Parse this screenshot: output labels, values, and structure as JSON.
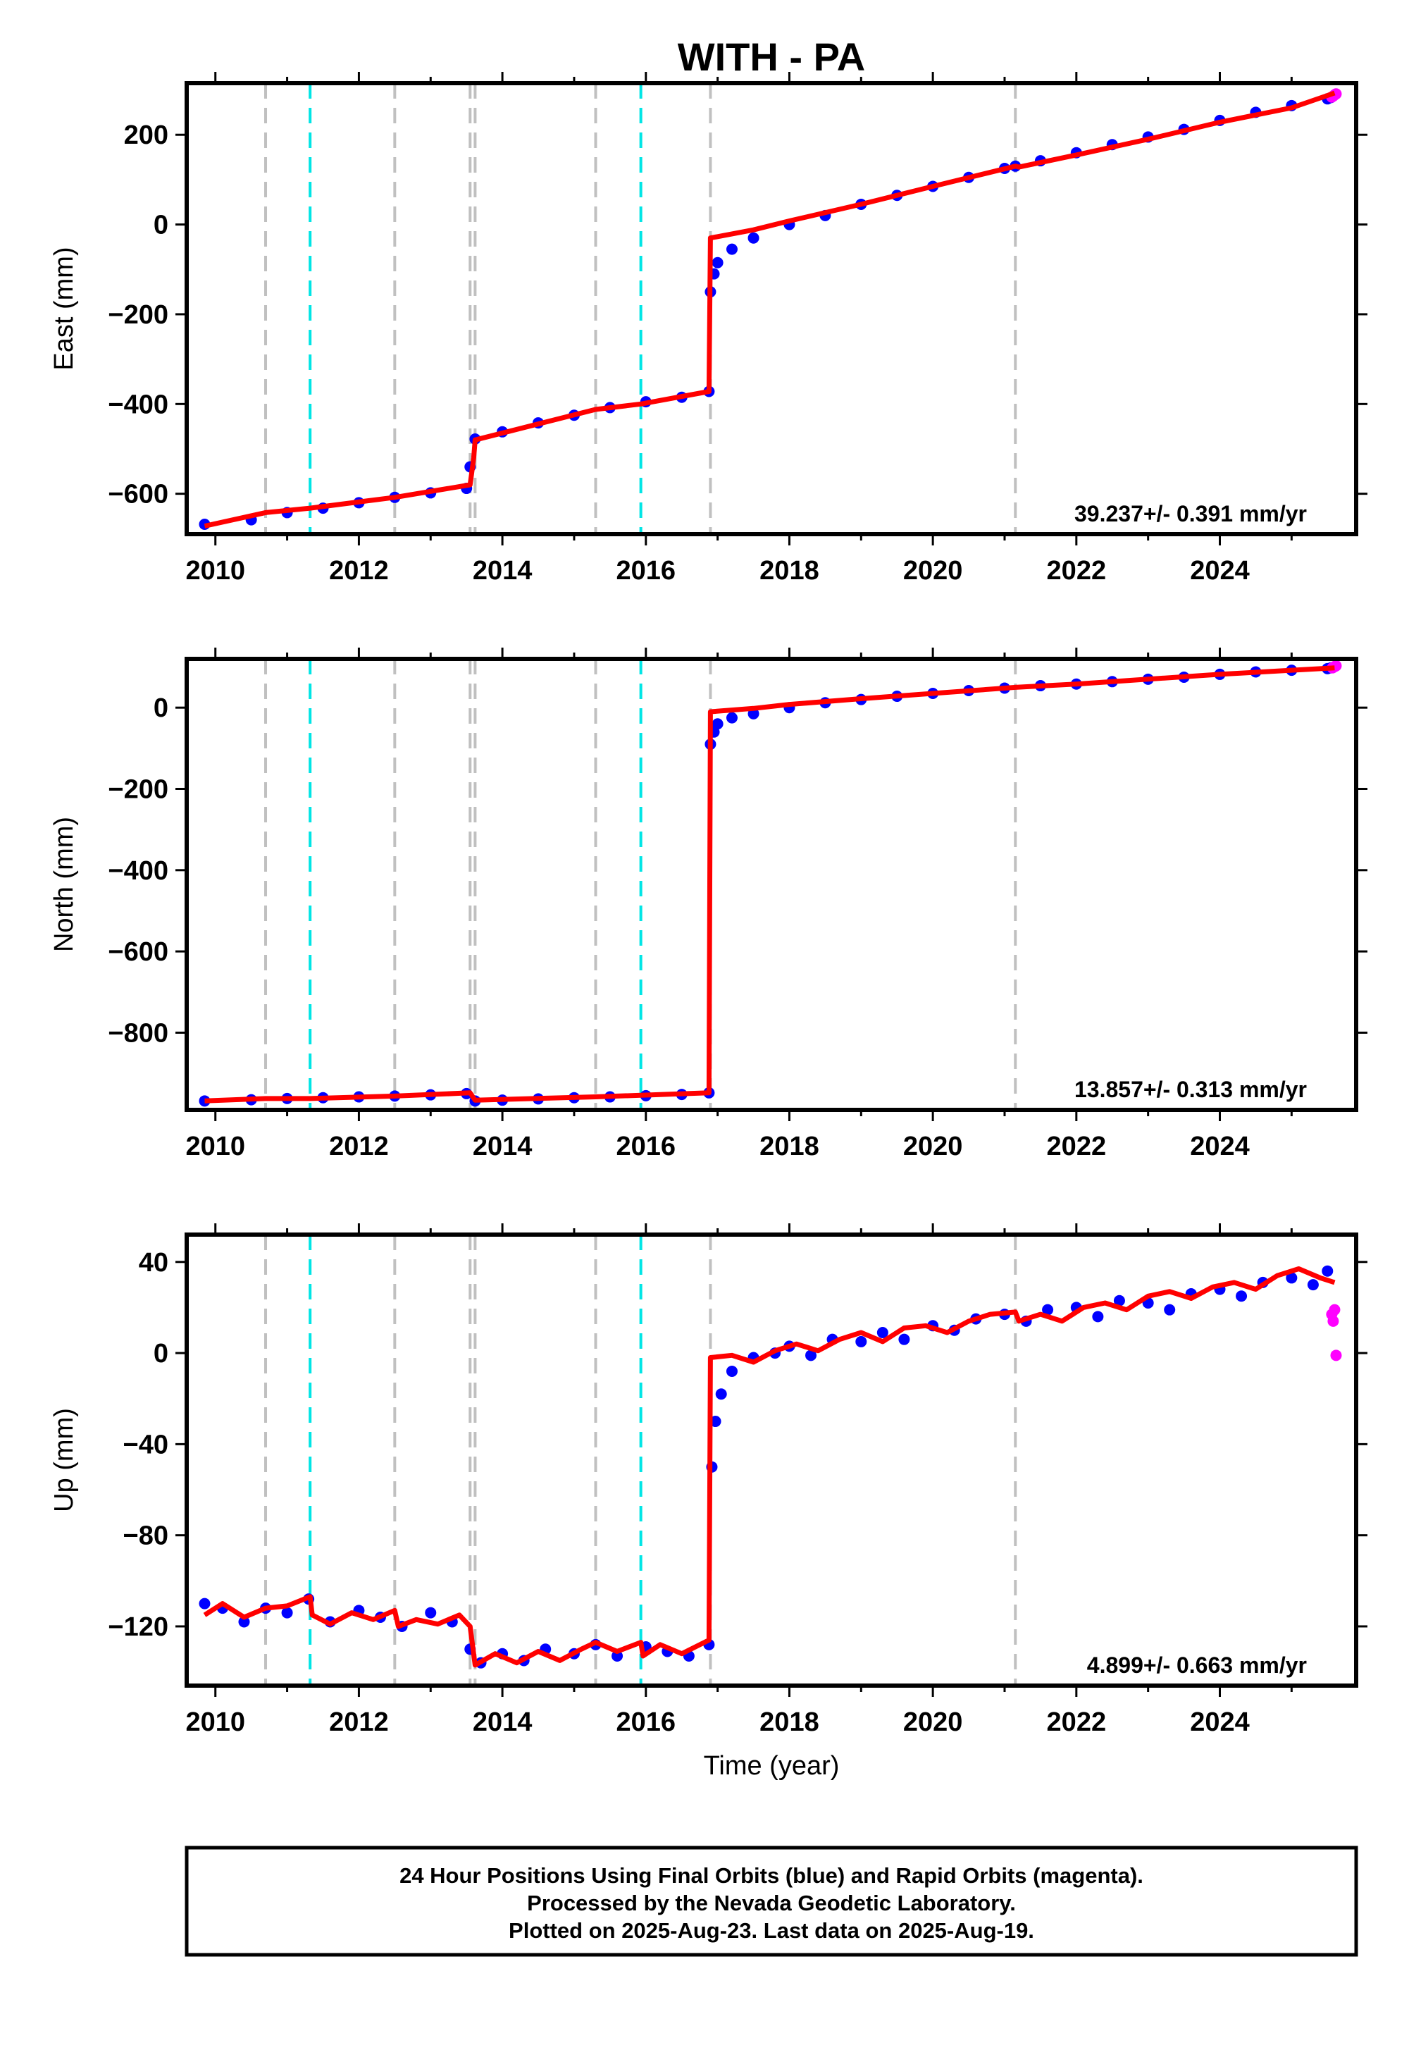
{
  "title": "WITH - PA",
  "xlabel": "Time (year)",
  "footer": {
    "line1": "24 Hour Positions Using Final Orbits (blue) and Rapid Orbits (magenta).",
    "line2": "Processed by the Nevada Geodetic Laboratory.",
    "line3": "Plotted on 2025-Aug-23. Last data on 2025-Aug-19."
  },
  "colors": {
    "final_orbits": "#0000ff",
    "rapid_orbits": "#ff00ff",
    "model": "#ff0000",
    "equipment_change": "#c0c0c0",
    "earthquake": "#00e5e5"
  },
  "chart_data": [
    {
      "type": "scatter",
      "ylabel": "East (mm)",
      "xlim": [
        2009.6,
        2025.9
      ],
      "ylim": [
        -690,
        315
      ],
      "xticks": [
        2010,
        2012,
        2014,
        2016,
        2018,
        2020,
        2022,
        2024
      ],
      "yticks": [
        -600,
        -400,
        -200,
        0,
        200
      ],
      "rate_label": "39.237+/- 0.391 mm/yr",
      "gray_lines": [
        2010.7,
        2012.5,
        2013.55,
        2013.62,
        2015.3,
        2016.9,
        2021.15
      ],
      "cyan_lines": [
        2011.32,
        2015.93
      ],
      "series": [
        {
          "name": "Final Orbits",
          "data_name": "final-orbit-series",
          "x": [
            2009.85,
            2010.5,
            2011.0,
            2011.5,
            2012.0,
            2012.5,
            2013.0,
            2013.5,
            2013.55,
            2013.62,
            2014.0,
            2014.5,
            2015.0,
            2015.5,
            2016.0,
            2016.5,
            2016.88,
            2016.9,
            2016.95,
            2017.0,
            2017.2,
            2017.5,
            2018.0,
            2018.5,
            2019.0,
            2019.5,
            2020.0,
            2020.5,
            2021.0,
            2021.15,
            2021.5,
            2022.0,
            2022.5,
            2023.0,
            2023.5,
            2024.0,
            2024.5,
            2025.0,
            2025.5,
            2025.55
          ],
          "y": [
            -668,
            -658,
            -642,
            -632,
            -620,
            -608,
            -598,
            -588,
            -540,
            -478,
            -462,
            -442,
            -425,
            -408,
            -395,
            -385,
            -372,
            -150,
            -110,
            -85,
            -55,
            -30,
            0,
            20,
            45,
            65,
            85,
            105,
            125,
            130,
            142,
            160,
            178,
            195,
            212,
            232,
            250,
            265,
            280,
            283
          ]
        },
        {
          "name": "Rapid Orbits",
          "data_name": "rapid-orbit-series",
          "x": [
            2025.56,
            2025.58,
            2025.6,
            2025.62
          ],
          "y": [
            284,
            286,
            289,
            291
          ]
        },
        {
          "name": "Model",
          "data_name": "model-series",
          "x": [
            2009.85,
            2010.7,
            2011.32,
            2012.5,
            2013.55,
            2013.6,
            2013.62,
            2015.3,
            2015.93,
            2016.88,
            2016.9,
            2017.5,
            2018.0,
            2019.0,
            2020.0,
            2021.15,
            2021.2,
            2022.0,
            2023.0,
            2024.0,
            2025.0,
            2025.6
          ],
          "y": [
            -672,
            -642,
            -632,
            -608,
            -580,
            -520,
            -480,
            -412,
            -400,
            -372,
            -30,
            -12,
            8,
            45,
            85,
            130,
            128,
            155,
            190,
            228,
            260,
            293
          ]
        }
      ]
    },
    {
      "type": "scatter",
      "ylabel": "North (mm)",
      "xlim": [
        2009.6,
        2025.9
      ],
      "ylim": [
        -990,
        120
      ],
      "xticks": [
        2010,
        2012,
        2014,
        2016,
        2018,
        2020,
        2022,
        2024
      ],
      "yticks": [
        -800,
        -600,
        -400,
        -200,
        0
      ],
      "rate_label": "13.857+/- 0.313 mm/yr",
      "gray_lines": [
        2010.7,
        2012.5,
        2013.55,
        2013.62,
        2015.3,
        2016.9,
        2021.15
      ],
      "cyan_lines": [
        2011.32,
        2015.93
      ],
      "series": [
        {
          "name": "Final Orbits",
          "data_name": "final-orbit-series",
          "x": [
            2009.85,
            2010.5,
            2011.0,
            2011.5,
            2012.0,
            2012.5,
            2013.0,
            2013.5,
            2013.62,
            2014.0,
            2014.5,
            2015.0,
            2015.5,
            2016.0,
            2016.5,
            2016.88,
            2016.9,
            2016.95,
            2017.0,
            2017.2,
            2017.5,
            2018.0,
            2018.5,
            2019.0,
            2019.5,
            2020.0,
            2020.5,
            2021.0,
            2021.5,
            2022.0,
            2022.5,
            2023.0,
            2023.5,
            2024.0,
            2024.5,
            2025.0,
            2025.5,
            2025.55
          ],
          "y": [
            -968,
            -965,
            -962,
            -960,
            -958,
            -956,
            -953,
            -950,
            -968,
            -966,
            -963,
            -960,
            -958,
            -955,
            -952,
            -948,
            -90,
            -60,
            -40,
            -25,
            -15,
            0,
            12,
            20,
            28,
            35,
            42,
            48,
            54,
            58,
            64,
            70,
            75,
            82,
            88,
            92,
            96,
            98
          ]
        },
        {
          "name": "Rapid Orbits",
          "data_name": "rapid-orbit-series",
          "x": [
            2025.57,
            2025.6,
            2025.62
          ],
          "y": [
            98,
            101,
            103
          ]
        },
        {
          "name": "Model",
          "data_name": "model-series",
          "x": [
            2009.85,
            2010.7,
            2011.32,
            2012.5,
            2013.55,
            2013.62,
            2015.3,
            2016.88,
            2016.9,
            2017.5,
            2018.0,
            2019.0,
            2020.0,
            2021.15,
            2022.0,
            2023.0,
            2024.0,
            2025.0,
            2025.6
          ],
          "y": [
            -968,
            -962,
            -962,
            -956,
            -948,
            -966,
            -958,
            -948,
            -10,
            -2,
            8,
            22,
            35,
            50,
            58,
            70,
            82,
            92,
            98
          ]
        }
      ]
    },
    {
      "type": "scatter",
      "ylabel": "Up (mm)",
      "xlim": [
        2009.6,
        2025.9
      ],
      "ylim": [
        -146,
        52
      ],
      "xticks": [
        2010,
        2012,
        2014,
        2016,
        2018,
        2020,
        2022,
        2024
      ],
      "yticks": [
        -120,
        -80,
        -40,
        0,
        40
      ],
      "rate_label": "4.899+/- 0.663 mm/yr",
      "gray_lines": [
        2010.7,
        2012.5,
        2013.55,
        2013.62,
        2015.3,
        2016.9,
        2021.15
      ],
      "cyan_lines": [
        2011.32,
        2015.93
      ],
      "series": [
        {
          "name": "Final Orbits",
          "data_name": "final-orbit-series",
          "x": [
            2009.85,
            2010.1,
            2010.4,
            2010.7,
            2011.0,
            2011.3,
            2011.6,
            2012.0,
            2012.3,
            2012.6,
            2013.0,
            2013.3,
            2013.55,
            2013.7,
            2014.0,
            2014.3,
            2014.6,
            2015.0,
            2015.3,
            2015.6,
            2016.0,
            2016.3,
            2016.6,
            2016.88,
            2016.92,
            2016.97,
            2017.05,
            2017.2,
            2017.5,
            2017.8,
            2018.0,
            2018.3,
            2018.6,
            2019.0,
            2019.3,
            2019.6,
            2020.0,
            2020.3,
            2020.6,
            2021.0,
            2021.3,
            2021.6,
            2022.0,
            2022.3,
            2022.6,
            2023.0,
            2023.3,
            2023.6,
            2024.0,
            2024.3,
            2024.6,
            2025.0,
            2025.3,
            2025.5
          ],
          "y": [
            -110,
            -112,
            -118,
            -112,
            -114,
            -108,
            -118,
            -113,
            -116,
            -120,
            -114,
            -118,
            -130,
            -136,
            -132,
            -135,
            -130,
            -132,
            -128,
            -133,
            -129,
            -131,
            -133,
            -128,
            -50,
            -30,
            -18,
            -8,
            -2,
            0,
            3,
            -1,
            6,
            5,
            9,
            6,
            12,
            10,
            15,
            17,
            14,
            19,
            20,
            16,
            23,
            22,
            19,
            26,
            28,
            25,
            31,
            33,
            30,
            36
          ]
        },
        {
          "name": "Rapid Orbits",
          "data_name": "rapid-orbit-series",
          "x": [
            2025.56,
            2025.58,
            2025.6,
            2025.62
          ],
          "y": [
            17,
            14,
            19,
            -1
          ]
        },
        {
          "name": "Model",
          "data_name": "model-series",
          "x": [
            2009.85,
            2010.1,
            2010.4,
            2010.7,
            2011.0,
            2011.32,
            2011.35,
            2011.6,
            2011.9,
            2012.2,
            2012.5,
            2012.55,
            2012.8,
            2013.1,
            2013.4,
            2013.55,
            2013.62,
            2013.9,
            2014.2,
            2014.5,
            2014.8,
            2015.1,
            2015.3,
            2015.6,
            2015.93,
            2015.96,
            2016.2,
            2016.5,
            2016.88,
            2016.9,
            2017.2,
            2017.5,
            2017.8,
            2018.1,
            2018.4,
            2018.7,
            2019.0,
            2019.3,
            2019.6,
            2019.9,
            2020.2,
            2020.5,
            2020.8,
            2021.15,
            2021.2,
            2021.5,
            2021.8,
            2022.1,
            2022.4,
            2022.7,
            2023.0,
            2023.3,
            2023.6,
            2023.9,
            2024.2,
            2024.5,
            2024.8,
            2025.1,
            2025.4,
            2025.6
          ],
          "y": [
            -115,
            -110,
            -116,
            -112,
            -111,
            -107,
            -115,
            -119,
            -114,
            -117,
            -113,
            -120,
            -117,
            -119,
            -115,
            -120,
            -137,
            -132,
            -136,
            -131,
            -135,
            -130,
            -127,
            -131,
            -127,
            -133,
            -128,
            -132,
            -126,
            -2,
            -1,
            -4,
            1,
            4,
            1,
            6,
            9,
            5,
            11,
            12,
            9,
            14,
            17,
            18,
            14,
            17,
            14,
            20,
            22,
            19,
            25,
            27,
            24,
            29,
            31,
            28,
            34,
            37,
            33,
            31
          ]
        }
      ]
    }
  ]
}
